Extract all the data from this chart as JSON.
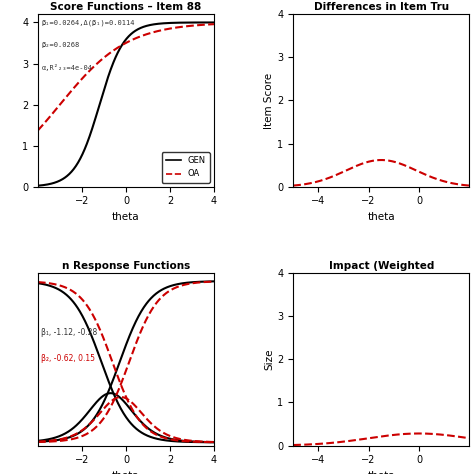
{
  "title_tl": "Score Functions – Item 88",
  "title_tr": "Differences in Item Tru",
  "title_bl": "n Response Functions",
  "title_br": "Impact (Weighted",
  "annotation_tl_lines": [
    "β₁=0.0264,Δ(β₁)=0.0114",
    "β₂=0.0268",
    "α,R²₂₃=4e-04"
  ],
  "annotation_bl_line1": "β₁, -1.12, -0.28",
  "annotation_bl_line2": "β₂, -0.62, 0.15",
  "legend_labels": [
    "GEN",
    "OA"
  ],
  "white": "#ffffff",
  "black": "#000000",
  "red": "#cc0000",
  "plot_bg": "#ffffff",
  "fig_bg": "#ffffff"
}
